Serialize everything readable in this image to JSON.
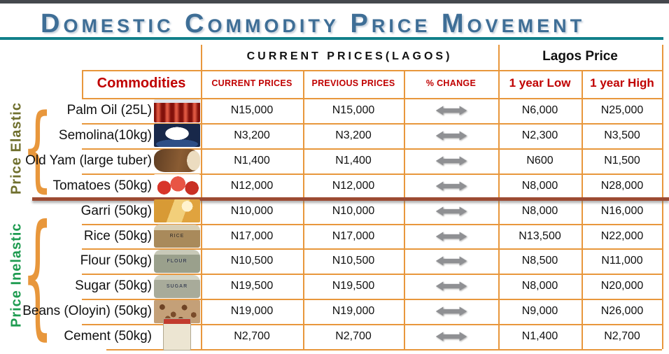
{
  "title": "Domestic Commodity Price Movement",
  "table": {
    "group_headers": {
      "current_prices_lagos": "CURRENT PRICES(LAGOS)",
      "lagos_price": "Lagos Price"
    },
    "columns": {
      "commodities": "Commodities",
      "current": "CURRENT PRICES",
      "previous": "PREVIOUS PRICES",
      "change": "% CHANGE",
      "low": "1 year Low",
      "high": "1 year High"
    },
    "rows": [
      {
        "name": "Palm Oil (25L)",
        "image": "palm-oil",
        "current": "N15,000",
        "previous": "N15,000",
        "change": "no change",
        "low": "N6,000",
        "high": "N25,000",
        "group": "Price Elastic"
      },
      {
        "name": "Semolina(10kg)",
        "image": "semolina",
        "current": "N3,200",
        "previous": "N3,200",
        "change": "no change",
        "low": "N2,300",
        "high": "N3,500",
        "group": "Price Elastic"
      },
      {
        "name": "Old Yam (large tuber)",
        "image": "old-yam",
        "current": "N1,400",
        "previous": "N1,400",
        "change": "no change",
        "low": "N600",
        "high": "N1,500",
        "group": "Price Elastic"
      },
      {
        "name": "Tomatoes (50kg)",
        "image": "tomatoes",
        "current": "N12,000",
        "previous": "N12,000",
        "change": "no change",
        "low": "N8,000",
        "high": "N28,000",
        "group": "Price Elastic"
      },
      {
        "name": "Garri (50kg)",
        "image": "garri",
        "current": "N10,000",
        "previous": "N10,000",
        "change": "no change",
        "low": "N8,000",
        "high": "N16,000",
        "group": "Price Inelastic"
      },
      {
        "name": "Rice (50kg)",
        "image": "rice-sack",
        "sack_label": "RICE",
        "current": "N17,000",
        "previous": "N17,000",
        "change": "no change",
        "low": "N13,500",
        "high": "N22,000",
        "group": "Price Inelastic"
      },
      {
        "name": "Flour (50kg)",
        "image": "flour-sack",
        "sack_label": "FLOUR",
        "current": "N10,500",
        "previous": "N10,500",
        "change": "no change",
        "low": "N8,500",
        "high": "N11,000",
        "group": "Price Inelastic"
      },
      {
        "name": "Sugar (50kg)",
        "image": "sugar-sack",
        "sack_label": "SUGAR",
        "current": "N19,500",
        "previous": "N19,500",
        "change": "no change",
        "low": "N8,000",
        "high": "N20,000",
        "group": "Price Inelastic"
      },
      {
        "name": "Beans (Oloyin) (50kg)",
        "image": "beans",
        "current": "N19,000",
        "previous": "N19,000",
        "change": "no change",
        "low": "N9,000",
        "high": "N26,000",
        "group": "Price Inelastic"
      },
      {
        "name": "Cement (50kg)",
        "image": "cement-bag",
        "current": "N2,700",
        "previous": "N2,700",
        "change": "no change",
        "low": "N1,400",
        "high": "N2,700",
        "group": "Price Inelastic"
      }
    ]
  },
  "side_labels": [
    {
      "label": "Price Elastic",
      "color": "#6F6F2D"
    },
    {
      "label": "Price Inelastic",
      "color": "#1E9B50"
    }
  ],
  "colors": {
    "accent_orange": "#E8973C",
    "header_red": "#C00000",
    "title_blue": "#3E6E96",
    "underline_teal": "#12808A",
    "divider_brown": "#9C4B33",
    "arrow_gray": "#8F9093",
    "topbar": "#45484D"
  }
}
